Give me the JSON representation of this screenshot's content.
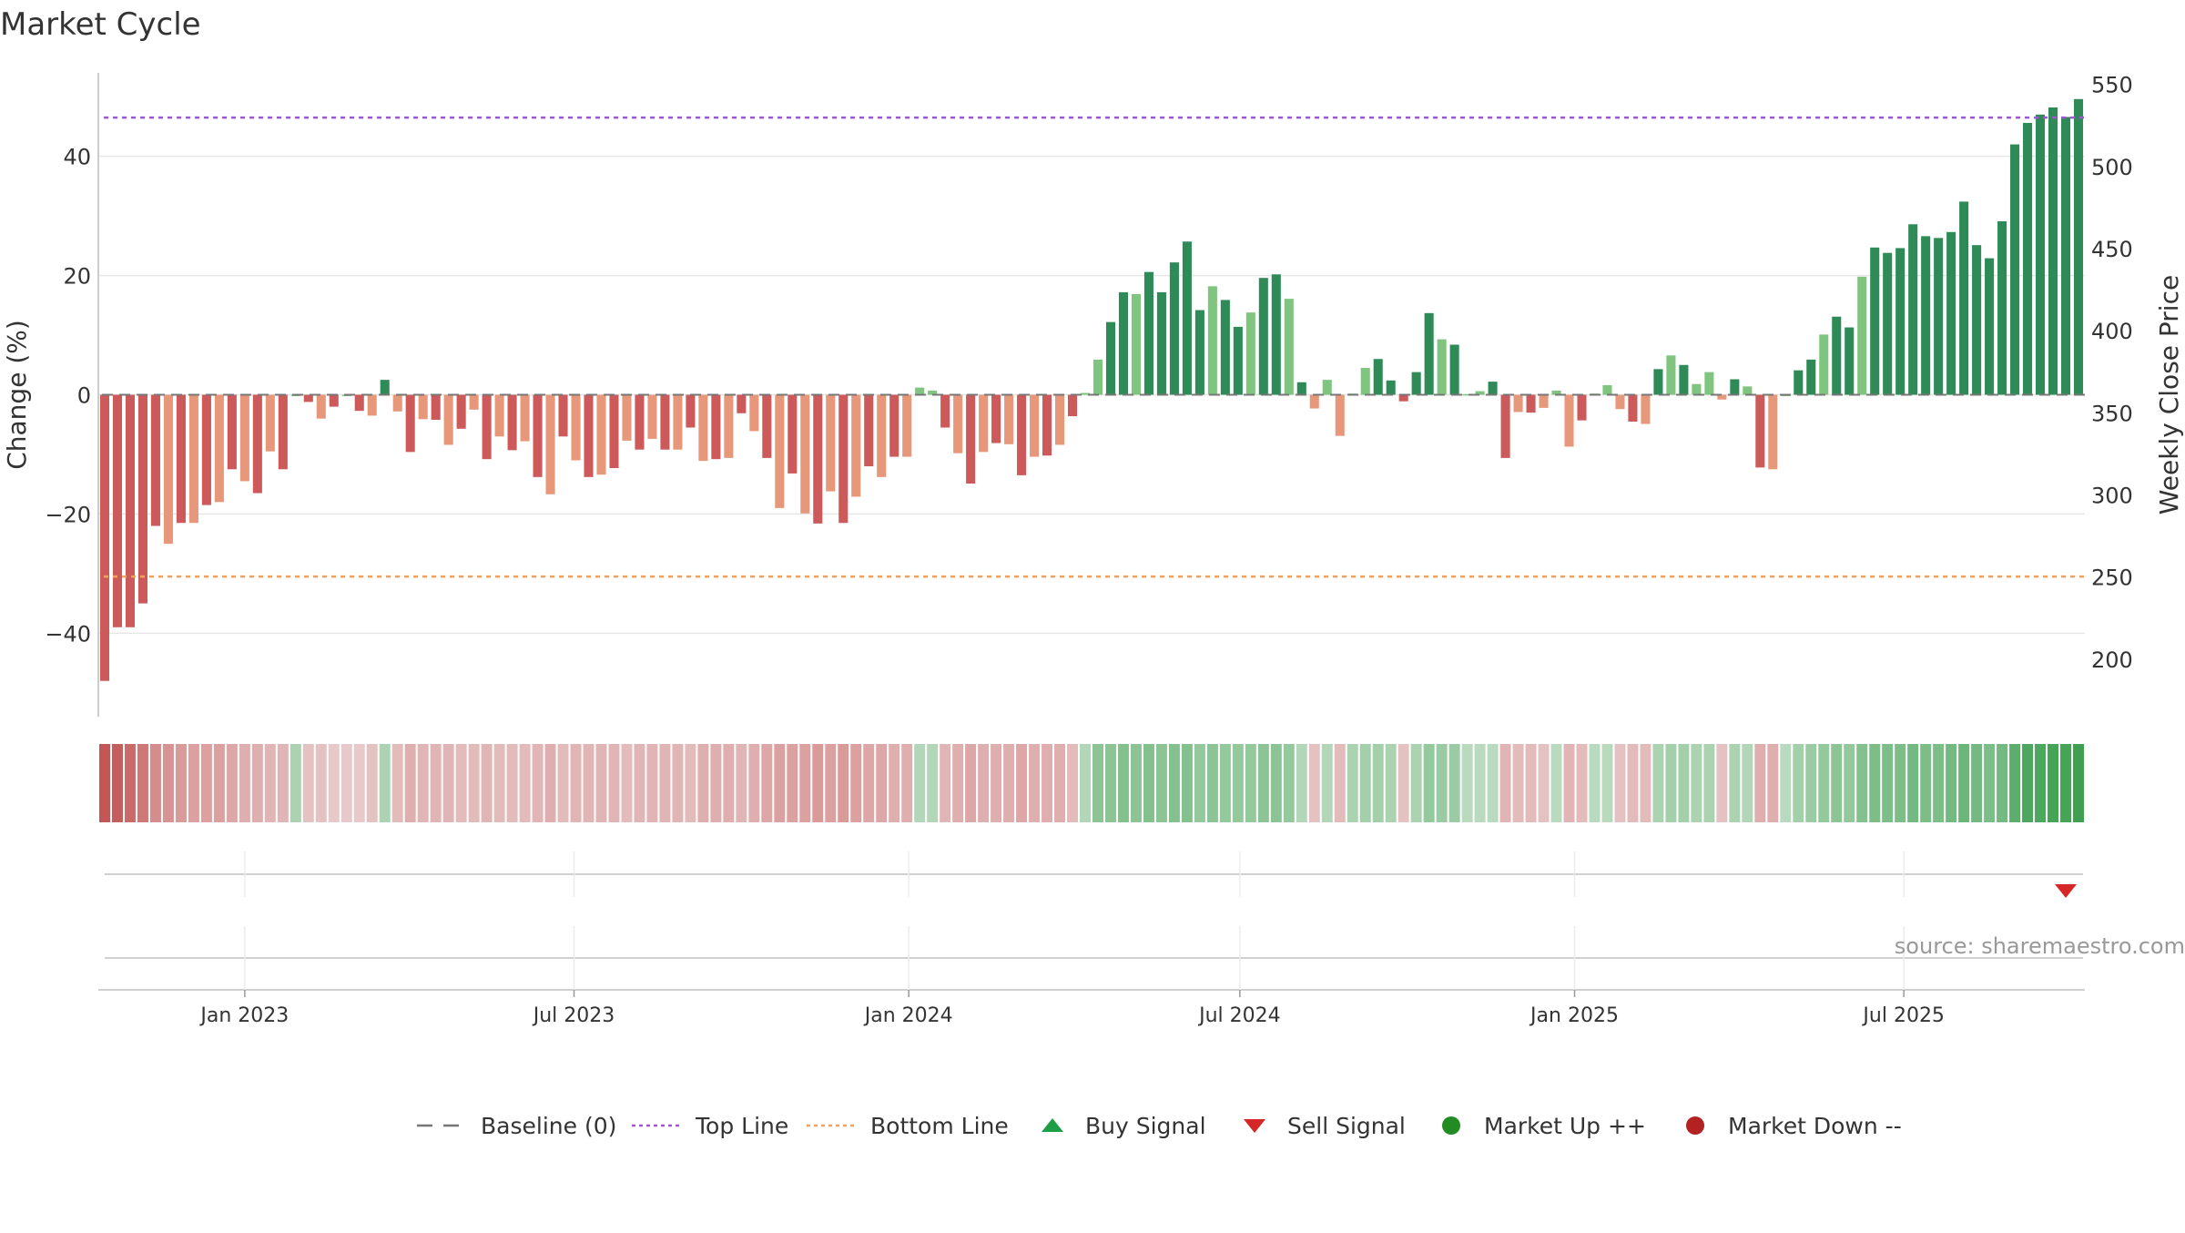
{
  "chart_data": {
    "type": "bar",
    "title": "Market Cycle",
    "ylabel_left": "Change (%)",
    "ylabel_right": "Weekly Close Price",
    "source": "source: sharemaestro.com",
    "ylim_left": [
      -54,
      54
    ],
    "yticks_left": [
      -40,
      -20,
      0,
      20,
      40
    ],
    "ytick_labels_left": [
      "−40",
      "−20",
      "0",
      "20",
      "40"
    ],
    "ylim_right": [
      165,
      557
    ],
    "yticks_right": [
      200,
      250,
      300,
      350,
      400,
      450,
      500,
      550
    ],
    "ytick_labels_right": [
      "200",
      "250",
      "300",
      "350",
      "400",
      "450",
      "500",
      "550"
    ],
    "x_ticks": [
      {
        "label": "Jan 2023",
        "date": "2023-01-01"
      },
      {
        "label": "Jul 2023",
        "date": "2023-07-01"
      },
      {
        "label": "Jan 2024",
        "date": "2024-01-01"
      },
      {
        "label": "Jul 2024",
        "date": "2024-07-01"
      },
      {
        "label": "Jan 2025",
        "date": "2025-01-01"
      },
      {
        "label": "Jul 2025",
        "date": "2025-07-01"
      }
    ],
    "first_week": "2022-10-16",
    "top_line": 46.5,
    "bottom_line": -30.5,
    "values": [
      -48,
      -39,
      -39,
      -35,
      -22,
      -25,
      -21.5,
      -21.5,
      -18.5,
      -18,
      -12.5,
      -14.5,
      -16.5,
      -9.5,
      -12.5,
      0,
      -1.2,
      -4,
      -2,
      0,
      -2.7,
      -3.5,
      2.5,
      -2.8,
      -9.6,
      -4.1,
      -4.2,
      -8.4,
      -5.7,
      -2.5,
      -10.8,
      -7,
      -9.3,
      -7.8,
      -13.8,
      -16.7,
      -7,
      -11,
      -13.8,
      -13.4,
      -12.3,
      -7.7,
      -9.2,
      -7.4,
      -9.2,
      -9.2,
      -5.5,
      -11.1,
      -10.8,
      -10.6,
      -3.1,
      -6.1,
      -10.6,
      -19,
      -13.2,
      -19.9,
      -21.6,
      -16.2,
      -21.5,
      -17.1,
      -12,
      -13.8,
      -10.4,
      -10.4,
      1.2,
      0.7,
      -5.5,
      -9.8,
      -14.9,
      -9.6,
      -8.1,
      -8.3,
      -13.5,
      -10.4,
      -10.2,
      -8.4,
      -3.6,
      0.3,
      5.9,
      12.2,
      17.2,
      16.9,
      20.6,
      17.2,
      22.2,
      25.7,
      14.2,
      18.2,
      15.9,
      11.4,
      13.8,
      19.6,
      20.2,
      16.1,
      2.1,
      -2.3,
      2.5,
      -6.9,
      0.2,
      4.5,
      6,
      2.4,
      -1.1,
      3.8,
      13.7,
      9.3,
      8.4,
      0.1,
      0.6,
      2.2,
      -10.6,
      -2.9,
      -3,
      -2.2,
      0.7,
      -8.7,
      -4.3,
      0.2,
      1.6,
      -2.4,
      -4.5,
      -4.9,
      4.3,
      6.6,
      5,
      1.8,
      3.8,
      -0.8,
      2.6,
      1.4,
      -12.2,
      -12.5,
      0,
      4.1,
      5.9,
      10.1,
      13.1,
      11.3,
      19.8,
      24.7,
      23.8,
      24.6,
      28.6,
      26.6,
      26.3,
      27.3,
      32.4,
      25.1,
      22.9,
      29.1,
      42,
      45.6,
      47,
      48.2,
      46.6,
      49.6
    ],
    "heat_strip": [
      -1.0,
      -0.95,
      -0.85,
      -0.75,
      -0.6,
      -0.55,
      -0.5,
      -0.45,
      -0.45,
      -0.45,
      -0.4,
      -0.35,
      -0.35,
      -0.3,
      -0.3,
      0.3,
      -0.2,
      -0.2,
      -0.15,
      -0.15,
      -0.15,
      -0.2,
      0.3,
      -0.25,
      -0.35,
      -0.3,
      -0.3,
      -0.3,
      -0.25,
      -0.25,
      -0.3,
      -0.25,
      -0.25,
      -0.25,
      -0.3,
      -0.35,
      -0.25,
      -0.3,
      -0.3,
      -0.3,
      -0.3,
      -0.25,
      -0.3,
      -0.3,
      -0.3,
      -0.3,
      -0.25,
      -0.35,
      -0.35,
      -0.35,
      -0.3,
      -0.35,
      -0.4,
      -0.45,
      -0.45,
      -0.45,
      -0.5,
      -0.45,
      -0.5,
      -0.45,
      -0.4,
      -0.4,
      -0.35,
      -0.35,
      0.25,
      0.25,
      -0.3,
      -0.35,
      -0.4,
      -0.35,
      -0.35,
      -0.35,
      -0.4,
      -0.35,
      -0.35,
      -0.35,
      -0.25,
      0.25,
      0.5,
      0.5,
      0.55,
      0.5,
      0.55,
      0.5,
      0.55,
      0.55,
      0.45,
      0.5,
      0.45,
      0.45,
      0.45,
      0.5,
      0.5,
      0.45,
      0.25,
      -0.2,
      0.25,
      -0.25,
      0.3,
      0.35,
      0.35,
      0.3,
      -0.2,
      0.3,
      0.45,
      0.4,
      0.4,
      0.2,
      0.2,
      0.2,
      -0.3,
      -0.25,
      -0.25,
      -0.2,
      0.2,
      -0.3,
      -0.25,
      0.2,
      0.2,
      -0.2,
      -0.25,
      -0.25,
      0.3,
      0.35,
      0.35,
      0.3,
      0.3,
      -0.2,
      0.3,
      0.25,
      -0.35,
      -0.35,
      0.2,
      0.35,
      0.4,
      0.45,
      0.5,
      0.45,
      0.55,
      0.6,
      0.6,
      0.6,
      0.65,
      0.6,
      0.6,
      0.65,
      0.7,
      0.65,
      0.6,
      0.65,
      0.8,
      0.9,
      0.9,
      0.95,
      0.95,
      1.0
    ],
    "sell_signals": [
      {
        "week_index": 154
      }
    ],
    "buy_signals": [],
    "market_up": [],
    "market_down": [],
    "legend_position": "bottom-center",
    "legend": [
      {
        "label": "Baseline (0)",
        "symbol": "dash-long",
        "color": "#777777"
      },
      {
        "label": "Top Line",
        "symbol": "dotted",
        "color": "#9b59d0"
      },
      {
        "label": "Bottom Line",
        "symbol": "dotted",
        "color": "#f0a060"
      },
      {
        "label": "Buy Signal",
        "symbol": "triangle-up",
        "color": "#1e9e46"
      },
      {
        "label": "Sell Signal",
        "symbol": "triangle-down",
        "color": "#d62728"
      },
      {
        "label": "Market Up ++",
        "symbol": "circle",
        "color": "#228b22"
      },
      {
        "label": "Market Down --",
        "symbol": "circle",
        "color": "#b22222"
      }
    ],
    "colors": {
      "strong_down": "#cc5a5a",
      "weak_down": "#e8987a",
      "strong_up": "#2e8b57",
      "weak_up": "#7fc47f",
      "top_line": "#9b59d0",
      "bottom_line": "#f0a060",
      "sell": "#d62728",
      "grid": "#e6e6e6",
      "axis": "#cccccc"
    }
  }
}
